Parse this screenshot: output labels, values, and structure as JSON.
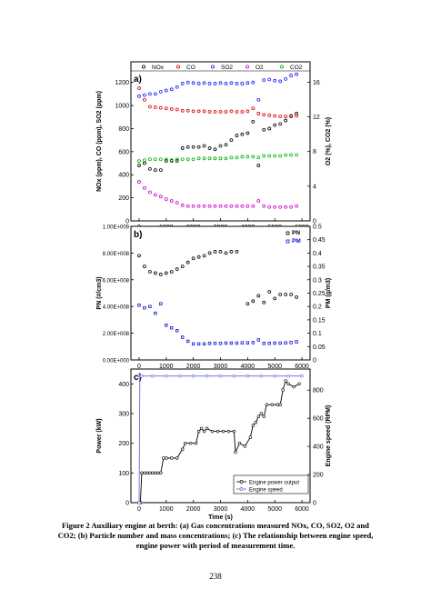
{
  "caption": {
    "line1": "Figure 2 Auxiliary engine at berth: (a) Gas concentrations measured NOx, CO, SO2, O2 and",
    "line2": "CO2; (b) Particle number and mass concentrations; (c) The relationship between engine speed,",
    "line3": "engine power with period of measurement time."
  },
  "page_number": "238",
  "colors": {
    "nox": "#000000",
    "co": "#d40000",
    "so2": "#1a1aff",
    "o2": "#cc00cc",
    "co2": "#00b000",
    "pn": "#000000",
    "pm": "#1010d0",
    "power": "#000000",
    "speed": "#5a6ad8"
  },
  "chart_data": [
    {
      "type": "scatter",
      "panel_label": "a)",
      "legend": [
        "NOx",
        "CO",
        "SO2",
        "O2",
        "CO2"
      ],
      "legend_position": "top",
      "xlabel": "",
      "ylabel": "NOx (ppm), CO (ppm), SO2 (ppm)",
      "y2label": "O2 (%), CO2 (%)",
      "xlim": [
        -300,
        6300
      ],
      "ylim": [
        0,
        1300
      ],
      "y2lim": [
        0,
        17.3
      ],
      "xticks": [
        0,
        1000,
        2000,
        3000,
        4000,
        5000,
        6000
      ],
      "yticks": [
        0,
        200,
        400,
        600,
        800,
        1000,
        1200
      ],
      "y2ticks": [
        0,
        4,
        8,
        12,
        16
      ],
      "series": [
        {
          "name": "NOx",
          "axis": "left",
          "x": [
            0,
            200,
            400,
            600,
            800,
            1000,
            1200,
            1400,
            1600,
            1800,
            2000,
            2200,
            2400,
            2600,
            2800,
            3000,
            3200,
            3400,
            3600,
            3800,
            4000,
            4200,
            4400,
            4600,
            4800,
            5000,
            5200,
            5400,
            5600,
            5800
          ],
          "y": [
            480,
            500,
            450,
            440,
            440,
            520,
            520,
            520,
            630,
            640,
            640,
            640,
            650,
            630,
            620,
            650,
            660,
            700,
            740,
            750,
            760,
            860,
            480,
            790,
            800,
            830,
            840,
            870,
            910,
            930
          ]
        },
        {
          "name": "CO",
          "axis": "left",
          "x": [
            0,
            200,
            400,
            600,
            800,
            1000,
            1200,
            1400,
            1600,
            1800,
            2000,
            2200,
            2400,
            2600,
            2800,
            3000,
            3200,
            3400,
            3600,
            3800,
            4000,
            4200,
            4400,
            4600,
            4800,
            5000,
            5200,
            5400,
            5600,
            5800
          ],
          "y": [
            1150,
            1050,
            990,
            985,
            980,
            975,
            970,
            965,
            955,
            955,
            950,
            950,
            950,
            945,
            945,
            945,
            945,
            950,
            945,
            945,
            950,
            975,
            930,
            920,
            915,
            910,
            905,
            905,
            905,
            910
          ]
        },
        {
          "name": "SO2",
          "axis": "left",
          "x": [
            0,
            200,
            400,
            600,
            800,
            1000,
            1200,
            1400,
            1600,
            1800,
            2000,
            2200,
            2400,
            2600,
            2800,
            3000,
            3200,
            3400,
            3600,
            3800,
            4000,
            4200,
            4400,
            4600,
            4800,
            5000,
            5200,
            5400,
            5600,
            5800
          ],
          "y": [
            1080,
            1090,
            1100,
            1100,
            1120,
            1130,
            1140,
            1160,
            1190,
            1200,
            1195,
            1190,
            1195,
            1190,
            1190,
            1195,
            1190,
            1195,
            1190,
            1190,
            1195,
            1200,
            1050,
            1220,
            1225,
            1215,
            1210,
            1230,
            1260,
            1270
          ]
        },
        {
          "name": "O2",
          "axis": "right",
          "x": [
            0,
            200,
            400,
            600,
            800,
            1000,
            1200,
            1400,
            1600,
            1800,
            2000,
            2200,
            2400,
            2600,
            2800,
            3000,
            3200,
            3400,
            3600,
            3800,
            4000,
            4200,
            4400,
            4600,
            4800,
            5000,
            5200,
            5400,
            5600,
            5800
          ],
          "y": [
            4.5,
            3.8,
            3.3,
            3.0,
            2.8,
            2.5,
            2.3,
            2.1,
            1.8,
            1.7,
            1.7,
            1.7,
            1.7,
            1.7,
            1.7,
            1.7,
            1.7,
            1.7,
            1.7,
            1.7,
            1.7,
            1.7,
            2.3,
            1.7,
            1.6,
            1.6,
            1.6,
            1.6,
            1.6,
            1.7
          ]
        },
        {
          "name": "CO2",
          "axis": "right",
          "x": [
            0,
            200,
            400,
            600,
            800,
            1000,
            1200,
            1400,
            1600,
            1800,
            2000,
            2200,
            2400,
            2600,
            2800,
            3000,
            3200,
            3400,
            3600,
            3800,
            4000,
            4200,
            4400,
            4600,
            4800,
            5000,
            5200,
            5400,
            5600,
            5800
          ],
          "y": [
            6.9,
            7.0,
            7.1,
            7.1,
            7.1,
            7.1,
            7.0,
            7.1,
            7.1,
            7.1,
            7.1,
            7.2,
            7.2,
            7.2,
            7.2,
            7.2,
            7.2,
            7.3,
            7.3,
            7.4,
            7.4,
            7.4,
            7.3,
            7.5,
            7.5,
            7.5,
            7.5,
            7.6,
            7.6,
            7.6
          ]
        }
      ]
    },
    {
      "type": "scatter",
      "panel_label": "b)",
      "legend": [
        "PN",
        "PM"
      ],
      "legend_position": "top-right",
      "xlabel": "",
      "ylabel": "PN (#/cm3)",
      "y2label": "PM (g/m3)",
      "xlim": [
        -300,
        6300
      ],
      "ylim": [
        0,
        1000000000
      ],
      "y2lim": [
        0,
        0.5
      ],
      "yticklabels": [
        "0.00E+000",
        "2.00E+008",
        "4.00E+008",
        "6.00E+008",
        "8.00E+008",
        "1.00E+009"
      ],
      "yticks": [
        0,
        200000000,
        400000000,
        600000000,
        800000000,
        1000000000
      ],
      "y2ticks": [
        0,
        0.05,
        0.1,
        0.15,
        0.2,
        0.25,
        0.3,
        0.35,
        0.4,
        0.45,
        0.5
      ],
      "y2ticklabels": [
        "0",
        "0.05",
        "0.1",
        "0.15",
        "0.2",
        "0.25",
        "0.3",
        "0.35",
        "0.4",
        "0.45",
        "0.5"
      ],
      "xticks": [
        0,
        1000,
        2000,
        3000,
        4000,
        5000,
        6000
      ],
      "series": [
        {
          "name": "PN",
          "axis": "left",
          "x": [
            0,
            200,
            400,
            600,
            800,
            1000,
            1200,
            1400,
            1600,
            1800,
            2000,
            2200,
            2400,
            2600,
            2800,
            3000,
            3200,
            3400,
            3600,
            3800,
            4000,
            4200,
            4400,
            4600,
            4800,
            5000,
            5200,
            5400,
            5600,
            5800
          ],
          "y": [
            780000000,
            700000000,
            660000000,
            650000000,
            640000000,
            650000000,
            660000000,
            680000000,
            700000000,
            730000000,
            760000000,
            770000000,
            780000000,
            800000000,
            810000000,
            810000000,
            800000000,
            810000000,
            810000000,
            null,
            420000000,
            440000000,
            480000000,
            430000000,
            510000000,
            460000000,
            490000000,
            490000000,
            490000000,
            470000000
          ]
        },
        {
          "name": "PM",
          "axis": "right",
          "x": [
            0,
            200,
            400,
            600,
            800,
            1000,
            1200,
            1400,
            1600,
            1800,
            2000,
            2200,
            2400,
            2600,
            2800,
            3000,
            3200,
            3400,
            3600,
            3800,
            4000,
            4200,
            4400,
            4600,
            4800,
            5000,
            5200,
            5400,
            5600,
            5800
          ],
          "y": [
            0.205,
            0.195,
            0.2,
            0.175,
            0.21,
            0.13,
            0.12,
            0.11,
            0.085,
            0.07,
            0.06,
            0.06,
            0.06,
            0.062,
            0.062,
            0.062,
            0.063,
            0.063,
            0.063,
            0.064,
            0.064,
            0.065,
            0.075,
            0.062,
            0.062,
            0.063,
            0.063,
            0.064,
            0.065,
            0.068
          ]
        }
      ]
    },
    {
      "type": "line",
      "panel_label": "c)",
      "legend": [
        "Engine power output",
        "Engine speed"
      ],
      "legend_position": "bottom-right",
      "xlabel": "Time (s)",
      "ylabel": "Power (kW)",
      "y2label": "Engine speed (RPM)",
      "xlim": [
        -300,
        6300
      ],
      "ylim": [
        0,
        450
      ],
      "y2lim": [
        0,
        950
      ],
      "xticks": [
        0,
        1000,
        2000,
        3000,
        4000,
        5000,
        6000
      ],
      "yticks": [
        0,
        100,
        200,
        300,
        400
      ],
      "y2ticks": [
        0,
        200,
        400,
        600,
        800
      ],
      "series": [
        {
          "name": "Engine power output",
          "axis": "left",
          "x": [
            0,
            50,
            100,
            200,
            300,
            400,
            500,
            600,
            700,
            800,
            900,
            1000,
            1200,
            1400,
            1600,
            1700,
            1900,
            2100,
            2200,
            2300,
            2400,
            2500,
            2700,
            2900,
            3100,
            3300,
            3500,
            3550,
            3700,
            3900,
            4100,
            4200,
            4300,
            4400,
            4500,
            4600,
            4700,
            4900,
            5100,
            5200,
            5300,
            5400,
            5500,
            5700,
            5900
          ],
          "y": [
            0,
            0,
            100,
            100,
            100,
            100,
            100,
            100,
            100,
            100,
            150,
            150,
            150,
            150,
            180,
            200,
            200,
            200,
            240,
            250,
            240,
            250,
            240,
            240,
            240,
            240,
            240,
            170,
            200,
            190,
            220,
            260,
            270,
            290,
            300,
            290,
            330,
            330,
            330,
            330,
            380,
            410,
            400,
            390,
            400
          ]
        },
        {
          "name": "Engine speed",
          "axis": "right",
          "x": [
            0,
            30,
            60,
            100,
            500,
            1000,
            1500,
            2000,
            2500,
            3000,
            3500,
            4000,
            4500,
            5000,
            5500,
            6000
          ],
          "y": [
            0,
            900,
            900,
            900,
            900,
            900,
            900,
            900,
            900,
            900,
            900,
            900,
            900,
            900,
            900,
            900
          ]
        }
      ]
    }
  ]
}
